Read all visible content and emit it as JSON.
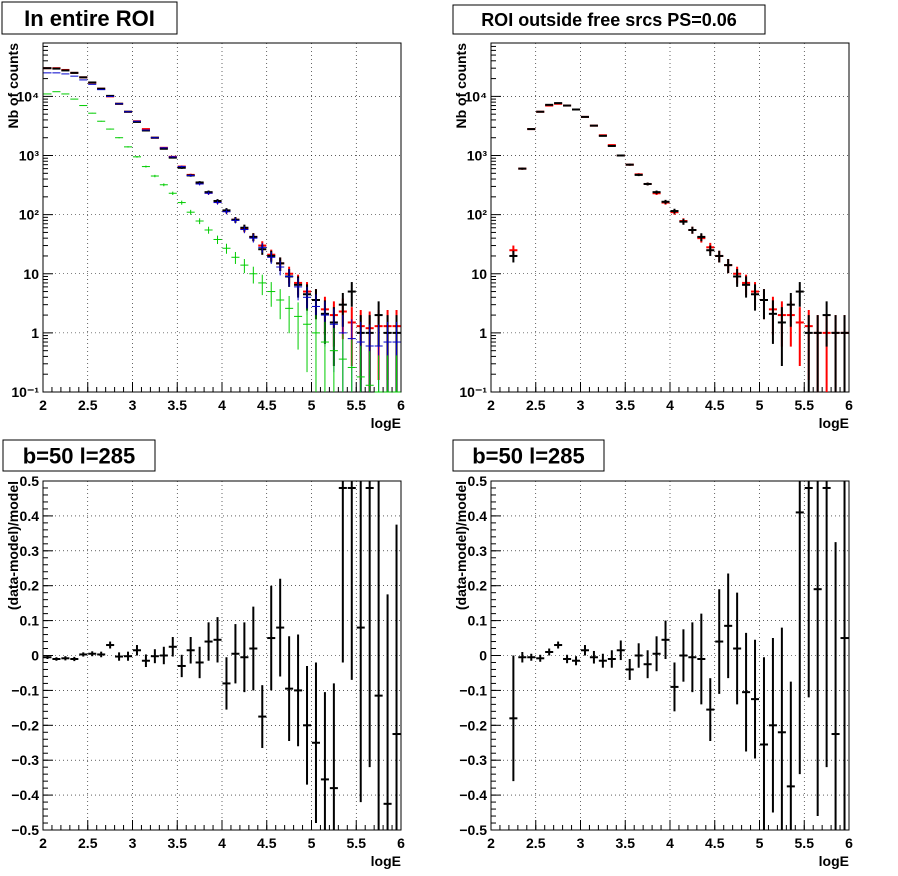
{
  "chart_data": [
    {
      "type": "scatter",
      "title": "In entire ROI",
      "xlabel": "logE",
      "ylabel": "Nb of counts",
      "xlim": [
        2,
        6
      ],
      "ylim": [
        0.1,
        80000
      ],
      "yscale": "log",
      "grid": true,
      "x_ticks": [
        "2",
        "2.5",
        "3",
        "3.5",
        "4",
        "4.5",
        "5",
        "5.5",
        "6"
      ],
      "y_ticks": [
        "10⁻¹",
        "1",
        "10",
        "10²",
        "10³",
        "10⁴"
      ],
      "bin_width": 0.1,
      "series": [
        {
          "color": "#ff0000",
          "style": "cross",
          "x": [
            2.05,
            2.15,
            2.25,
            2.35,
            2.45,
            2.55,
            2.65,
            2.75,
            2.85,
            2.95,
            3.05,
            3.15,
            3.25,
            3.35,
            3.45,
            3.55,
            3.65,
            3.75,
            3.85,
            3.95,
            4.05,
            4.15,
            4.25,
            4.35,
            4.45,
            4.55,
            4.65,
            4.75,
            4.85,
            4.95,
            5.05,
            5.15,
            5.25,
            5.35,
            5.45,
            5.55,
            5.65,
            5.75,
            5.85,
            5.95
          ],
          "y": [
            30000,
            30000,
            28000,
            25000,
            21000,
            17000,
            13500,
            10000,
            7500,
            5500,
            3800,
            2800,
            2000,
            1350,
            950,
            650,
            470,
            340,
            235,
            165,
            115,
            82,
            58,
            42,
            30,
            21,
            15,
            10,
            7,
            5,
            3.6,
            2.5,
            2,
            2.3,
            1.5,
            1.3,
            1.2,
            1.3,
            1.3,
            1.3
          ]
        },
        {
          "color": "#000000",
          "style": "cross",
          "x": [
            2.05,
            2.15,
            2.25,
            2.35,
            2.45,
            2.55,
            2.65,
            2.75,
            2.85,
            2.95,
            3.05,
            3.15,
            3.25,
            3.35,
            3.45,
            3.55,
            3.65,
            3.75,
            3.85,
            3.95,
            4.05,
            4.15,
            4.25,
            4.35,
            4.45,
            4.55,
            4.65,
            4.75,
            4.85,
            4.95,
            5.05,
            5.15,
            5.25,
            5.35,
            5.45,
            5.55,
            5.65,
            5.75,
            5.85,
            5.95
          ],
          "y": [
            30000,
            29500,
            27500,
            25000,
            21000,
            17200,
            13500,
            10200,
            7500,
            5500,
            3700,
            2650,
            2000,
            1300,
            920,
            620,
            460,
            350,
            240,
            170,
            118,
            82,
            60,
            42,
            26,
            20,
            15,
            9,
            6.5,
            4.5,
            3.6,
            2.1,
            1.5,
            3,
            5,
            1,
            1,
            2,
            1,
            1
          ]
        },
        {
          "color": "#0000cc",
          "style": "line",
          "x": [
            2.05,
            2.15,
            2.25,
            2.35,
            2.45,
            2.55,
            2.65,
            2.75,
            2.85,
            2.95,
            3.05,
            3.15,
            3.25,
            3.35,
            3.45,
            3.55,
            3.65,
            3.75,
            3.85,
            3.95,
            4.05,
            4.15,
            4.25,
            4.35,
            4.45,
            4.55,
            4.65,
            4.75,
            4.85,
            4.95,
            5.05,
            5.15,
            5.25,
            5.35,
            5.45,
            5.55,
            5.65,
            5.75,
            5.85,
            5.95
          ],
          "y": [
            25000,
            25000,
            24000,
            22000,
            19000,
            16000,
            13000,
            10000,
            7500,
            5500,
            3800,
            2700,
            2000,
            1350,
            950,
            650,
            460,
            330,
            230,
            160,
            112,
            80,
            56,
            40,
            28,
            19,
            13,
            9,
            6,
            4,
            2.8,
            2,
            1.4,
            1,
            0.8,
            0.7,
            0.6,
            0.6,
            0.7,
            0.7
          ]
        },
        {
          "color": "#00cc00",
          "style": "line",
          "x": [
            2.05,
            2.15,
            2.25,
            2.35,
            2.45,
            2.55,
            2.65,
            2.75,
            2.85,
            2.95,
            3.05,
            3.15,
            3.25,
            3.35,
            3.45,
            3.55,
            3.65,
            3.75,
            3.85,
            3.95,
            4.05,
            4.15,
            4.25,
            4.35,
            4.45,
            4.55,
            4.65,
            4.75,
            4.85,
            4.95,
            5.05,
            5.15,
            5.25,
            5.35,
            5.45,
            5.55,
            5.65,
            5.75,
            5.85,
            5.95
          ],
          "y": [
            11000,
            12000,
            11000,
            9000,
            7000,
            5200,
            3800,
            2800,
            2000,
            1400,
            950,
            650,
            450,
            320,
            230,
            160,
            110,
            78,
            55,
            38,
            27,
            19,
            14,
            10,
            7,
            5,
            3.6,
            2.6,
            1.9,
            1.4,
            1,
            0.7,
            0.5,
            0.36,
            0.26,
            0.18,
            0.13,
            0.1,
            0.1,
            0.1
          ]
        }
      ]
    },
    {
      "type": "scatter",
      "title": "ROI outside free srcs PS=0.06",
      "xlabel": "logE",
      "ylabel": "Nb of counts",
      "xlim": [
        2,
        6
      ],
      "ylim": [
        0.1,
        80000
      ],
      "yscale": "log",
      "grid": true,
      "x_ticks": [
        "2",
        "2.5",
        "3",
        "3.5",
        "4",
        "4.5",
        "5",
        "5.5",
        "6"
      ],
      "y_ticks": [
        "10⁻¹",
        "1",
        "10",
        "10²",
        "10³",
        "10⁴"
      ],
      "bin_width": 0.1,
      "series": [
        {
          "color": "#ff0000",
          "style": "cross",
          "x": [
            2.25,
            2.35,
            2.45,
            2.55,
            2.65,
            2.75,
            2.85,
            2.95,
            3.05,
            3.15,
            3.25,
            3.35,
            3.45,
            3.55,
            3.65,
            3.75,
            3.85,
            3.95,
            4.05,
            4.15,
            4.25,
            4.35,
            4.45,
            4.55,
            4.65,
            4.75,
            4.85,
            4.95,
            5.05,
            5.15,
            5.25,
            5.35,
            5.45,
            5.55,
            5.65,
            5.75,
            5.85,
            5.95
          ],
          "y": [
            25,
            600,
            2800,
            5500,
            7000,
            7500,
            7000,
            6000,
            4500,
            3200,
            2200,
            1500,
            1000,
            700,
            480,
            330,
            230,
            160,
            110,
            78,
            55,
            40,
            28,
            20,
            14,
            10,
            7,
            5,
            3.6,
            2.5,
            2,
            2,
            1.5,
            1.3,
            1,
            1,
            1,
            1
          ]
        },
        {
          "color": "#000000",
          "style": "cross",
          "x": [
            2.25,
            2.35,
            2.45,
            2.55,
            2.65,
            2.75,
            2.85,
            2.95,
            3.05,
            3.15,
            3.25,
            3.35,
            3.45,
            3.55,
            3.65,
            3.75,
            3.85,
            3.95,
            4.05,
            4.15,
            4.25,
            4.35,
            4.45,
            4.55,
            4.65,
            4.75,
            4.85,
            4.95,
            5.05,
            5.15,
            5.25,
            5.35,
            5.45,
            5.55,
            5.65,
            5.75,
            5.85,
            5.95
          ],
          "y": [
            20,
            600,
            2800,
            5500,
            7200,
            7700,
            7000,
            6000,
            4500,
            3200,
            2150,
            1450,
            1000,
            700,
            470,
            330,
            240,
            165,
            115,
            76,
            55,
            42,
            25,
            20,
            14,
            9,
            6.5,
            4.5,
            3.6,
            2.1,
            1.5,
            3,
            5,
            1,
            1,
            2,
            1,
            1
          ]
        }
      ]
    },
    {
      "type": "scatter",
      "title": "b=50 l=285",
      "xlabel": "logE",
      "ylabel": "(data-model)/model",
      "xlim": [
        2,
        6
      ],
      "ylim": [
        -0.5,
        0.5
      ],
      "yscale": "linear",
      "grid": true,
      "x_ticks": [
        "2",
        "2.5",
        "3",
        "3.5",
        "4",
        "4.5",
        "5",
        "5.5",
        "6"
      ],
      "y_ticks": [
        "−0.5",
        "−0.4",
        "−0.3",
        "−0.2",
        "−0.1",
        "0",
        "0.1",
        "0.2",
        "0.3",
        "0.4",
        "0.5"
      ],
      "bin_width": 0.1,
      "series": [
        {
          "color": "#000000",
          "style": "cross",
          "x": [
            2.05,
            2.15,
            2.25,
            2.35,
            2.45,
            2.55,
            2.65,
            2.75,
            2.85,
            2.95,
            3.05,
            3.15,
            3.25,
            3.35,
            3.45,
            3.55,
            3.65,
            3.75,
            3.85,
            3.95,
            4.05,
            4.15,
            4.25,
            4.35,
            4.45,
            4.55,
            4.65,
            4.75,
            4.85,
            4.95,
            5.05,
            5.15,
            5.25,
            5.35,
            5.45,
            5.55,
            5.65,
            5.75,
            5.85,
            5.95
          ],
          "y": [
            -0.005,
            -0.01,
            -0.008,
            -0.01,
            0.003,
            0.005,
            0.003,
            0.03,
            -0.003,
            -0.002,
            0.015,
            -0.015,
            -0.002,
            0,
            0.025,
            -0.03,
            0.015,
            -0.02,
            0.04,
            0.045,
            -0.08,
            0.005,
            -0.005,
            0.02,
            -0.175,
            0.05,
            0.08,
            -0.095,
            -0.1,
            -0.2,
            -0.25,
            -0.355,
            -0.38,
            0.48,
            0.48,
            0.08,
            0.48,
            -0.115,
            -0.425,
            -0.225
          ],
          "err": [
            0.005,
            0.005,
            0.006,
            0.006,
            0.006,
            0.007,
            0.008,
            0.01,
            0.012,
            0.013,
            0.015,
            0.018,
            0.02,
            0.025,
            0.028,
            0.032,
            0.038,
            0.045,
            0.055,
            0.065,
            0.075,
            0.085,
            0.1,
            0.12,
            0.09,
            0.15,
            0.14,
            0.15,
            0.16,
            0.17,
            0.23,
            0.25,
            0.3,
            0.5,
            0.55,
            0.5,
            0.8,
            0.7,
            0.6,
            0.6
          ]
        }
      ]
    },
    {
      "type": "scatter",
      "title": "b=50 l=285",
      "xlabel": "logE",
      "ylabel": "(data-model)/model",
      "xlim": [
        2,
        6
      ],
      "ylim": [
        -0.5,
        0.5
      ],
      "yscale": "linear",
      "grid": true,
      "x_ticks": [
        "2",
        "2.5",
        "3",
        "3.5",
        "4",
        "4.5",
        "5",
        "5.5",
        "6"
      ],
      "y_ticks": [
        "−0.5",
        "−0.4",
        "−0.3",
        "−0.2",
        "−0.1",
        "0",
        "0.1",
        "0.2",
        "0.3",
        "0.4",
        "0.5"
      ],
      "bin_width": 0.1,
      "series": [
        {
          "color": "#000000",
          "style": "cross",
          "x": [
            2.25,
            2.35,
            2.45,
            2.55,
            2.65,
            2.75,
            2.85,
            2.95,
            3.05,
            3.15,
            3.25,
            3.35,
            3.45,
            3.55,
            3.65,
            3.75,
            3.85,
            3.95,
            4.05,
            4.15,
            4.25,
            4.35,
            4.45,
            4.55,
            4.65,
            4.75,
            4.85,
            4.95,
            5.05,
            5.15,
            5.25,
            5.35,
            5.45,
            5.55,
            5.65,
            5.75,
            5.85,
            5.95
          ],
          "y": [
            -0.18,
            -0.005,
            -0.005,
            -0.008,
            0.01,
            0.03,
            -0.01,
            -0.015,
            0.015,
            -0.005,
            -0.015,
            -0.01,
            0.015,
            -0.04,
            0,
            -0.025,
            0.005,
            0.045,
            -0.09,
            0,
            -0.005,
            -0.01,
            -0.155,
            0.04,
            0.085,
            0.02,
            -0.105,
            -0.125,
            -0.255,
            -0.2,
            -0.22,
            -0.375,
            0.41,
            0.48,
            0.19,
            0.48,
            -0.225,
            0.05
          ],
          "err": [
            0.18,
            0.015,
            0.01,
            0.01,
            0.01,
            0.01,
            0.012,
            0.013,
            0.015,
            0.018,
            0.02,
            0.025,
            0.028,
            0.03,
            0.035,
            0.04,
            0.05,
            0.055,
            0.07,
            0.075,
            0.1,
            0.13,
            0.09,
            0.15,
            0.15,
            0.16,
            0.17,
            0.17,
            0.25,
            0.25,
            0.3,
            0.3,
            0.75,
            0.6,
            0.65,
            0.8,
            0.55,
            0.55
          ]
        }
      ]
    }
  ]
}
